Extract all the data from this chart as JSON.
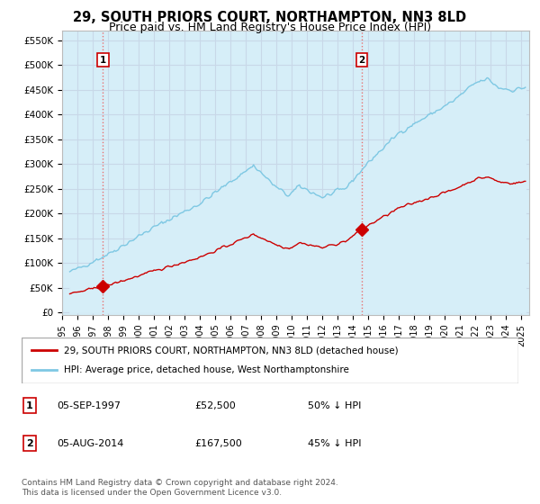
{
  "title": "29, SOUTH PRIORS COURT, NORTHAMPTON, NN3 8LD",
  "subtitle": "Price paid vs. HM Land Registry's House Price Index (HPI)",
  "title_fontsize": 10.5,
  "subtitle_fontsize": 9,
  "ylabel_ticks": [
    "£0",
    "£50K",
    "£100K",
    "£150K",
    "£200K",
    "£250K",
    "£300K",
    "£350K",
    "£400K",
    "£450K",
    "£500K",
    "£550K"
  ],
  "ytick_values": [
    0,
    50000,
    100000,
    150000,
    200000,
    250000,
    300000,
    350000,
    400000,
    450000,
    500000,
    550000
  ],
  "ylim": [
    -5000,
    570000
  ],
  "xlim_start": 1995.3,
  "xlim_end": 2025.5,
  "xtick_years": [
    1995,
    1996,
    1997,
    1998,
    1999,
    2000,
    2001,
    2002,
    2003,
    2004,
    2005,
    2006,
    2007,
    2008,
    2009,
    2010,
    2011,
    2012,
    2013,
    2014,
    2015,
    2016,
    2017,
    2018,
    2019,
    2020,
    2021,
    2022,
    2023,
    2024,
    2025
  ],
  "sale1_year": 1997.67,
  "sale1_price": 52500,
  "sale1_label": "1",
  "sale1_date": "05-SEP-1997",
  "sale1_price_str": "£52,500",
  "sale1_pct": "50% ↓ HPI",
  "sale2_year": 2014.58,
  "sale2_price": 167500,
  "sale2_label": "2",
  "sale2_date": "05-AUG-2014",
  "sale2_price_str": "£167,500",
  "sale2_pct": "45% ↓ HPI",
  "hpi_color": "#7ec8e3",
  "hpi_fill_color": "#d6eef8",
  "sale_color": "#cc0000",
  "dashed_color": "#e87070",
  "background_color": "#ddeeff",
  "grid_color": "#c8d8e8",
  "legend1": "29, SOUTH PRIORS COURT, NORTHAMPTON, NN3 8LD (detached house)",
  "legend2": "HPI: Average price, detached house, West Northamptonshire",
  "footer": "Contains HM Land Registry data © Crown copyright and database right 2024.\nThis data is licensed under the Open Government Licence v3.0."
}
